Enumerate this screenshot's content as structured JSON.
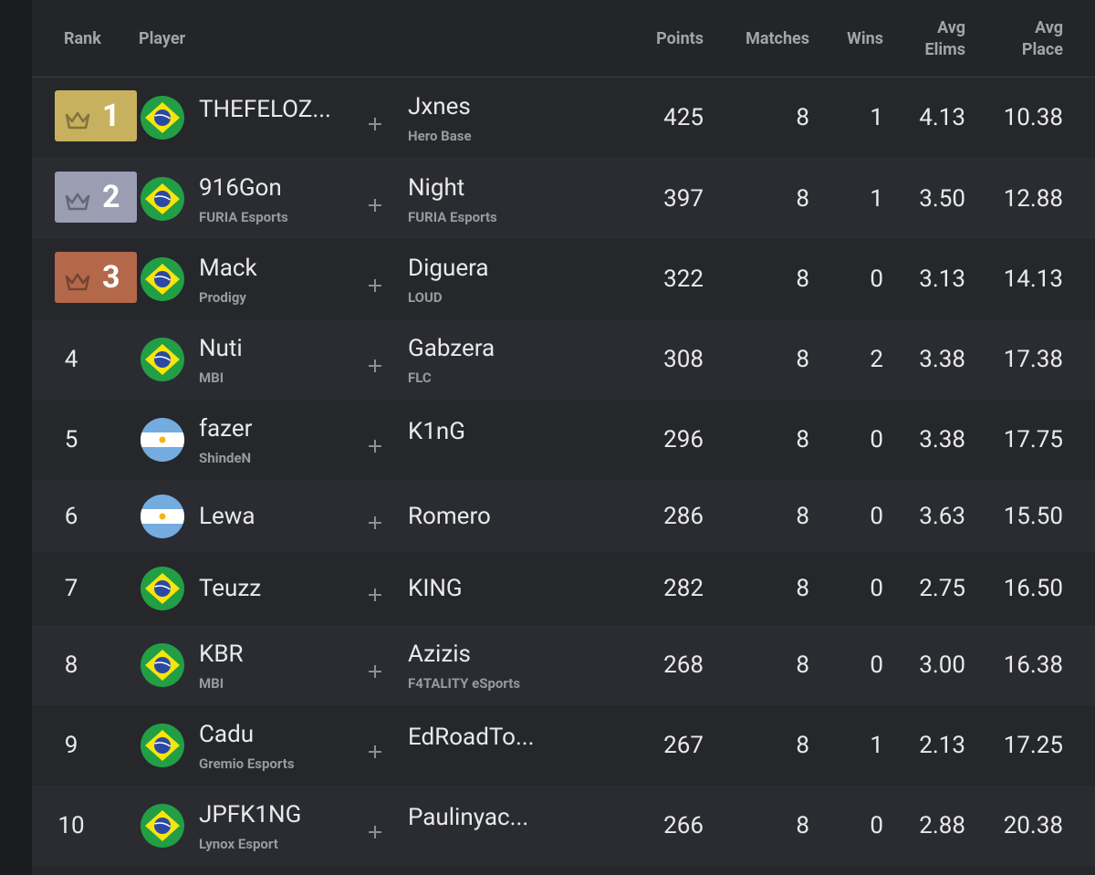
{
  "table": {
    "columns": [
      "Rank",
      "Player",
      "Points",
      "Matches",
      "Wins",
      "Avg Elims",
      "Avg Place"
    ],
    "rows": [
      {
        "rank": "1",
        "badge_color": "#c8b15e",
        "flag": "brazil",
        "player1": "THEFELOZ...",
        "player2": "Jxnes",
        "team2": "Hero Base",
        "points": "425",
        "matches": "8",
        "wins": "1",
        "avg_elims": "4.13",
        "avg_place": "10.38"
      },
      {
        "rank": "2",
        "badge_color": "#9b9db2",
        "flag": "brazil",
        "player1": "916Gon",
        "team1": "FURIA Esports",
        "player2": "Night",
        "team2": "FURIA Esports",
        "points": "397",
        "matches": "8",
        "wins": "1",
        "avg_elims": "3.50",
        "avg_place": "12.88"
      },
      {
        "rank": "3",
        "badge_color": "#b4684a",
        "flag": "brazil",
        "player1": "Mack",
        "team1": "Prodigy",
        "player2": "Diguera",
        "team2": "LOUD",
        "points": "322",
        "matches": "8",
        "wins": "0",
        "avg_elims": "3.13",
        "avg_place": "14.13"
      },
      {
        "rank": "4",
        "flag": "brazil",
        "player1": "Nuti",
        "team1": "MBI",
        "player2": "Gabzera",
        "team2": "FLC",
        "points": "308",
        "matches": "8",
        "wins": "2",
        "avg_elims": "3.38",
        "avg_place": "17.38"
      },
      {
        "rank": "5",
        "flag": "argentina",
        "player1": "fazer",
        "team1": "ShindeN",
        "player2": "K1nG",
        "points": "296",
        "matches": "8",
        "wins": "0",
        "avg_elims": "3.38",
        "avg_place": "17.75"
      },
      {
        "rank": "6",
        "flag": "argentina",
        "player1": "Lewa",
        "player2": "Romero",
        "points": "286",
        "matches": "8",
        "wins": "0",
        "avg_elims": "3.63",
        "avg_place": "15.50"
      },
      {
        "rank": "7",
        "flag": "brazil",
        "player1": "Teuzz",
        "player2": "KING",
        "points": "282",
        "matches": "8",
        "wins": "0",
        "avg_elims": "2.75",
        "avg_place": "16.50"
      },
      {
        "rank": "8",
        "flag": "brazil",
        "player1": "KBR",
        "team1": "MBI",
        "player2": "Azizis",
        "team2": "F4TALITY eSports",
        "points": "268",
        "matches": "8",
        "wins": "0",
        "avg_elims": "3.00",
        "avg_place": "16.38"
      },
      {
        "rank": "9",
        "flag": "brazil",
        "player1": "Cadu",
        "team1": "Gremio Esports",
        "player2": "EdRoadTo...",
        "points": "267",
        "matches": "8",
        "wins": "1",
        "avg_elims": "2.13",
        "avg_place": "17.25"
      },
      {
        "rank": "10",
        "flag": "brazil",
        "player1": "JPFK1NG",
        "team1": "Lynox Esport",
        "player2": "Paulinyac...",
        "points": "266",
        "matches": "8",
        "wins": "0",
        "avg_elims": "2.88",
        "avg_place": "20.38"
      }
    ]
  }
}
